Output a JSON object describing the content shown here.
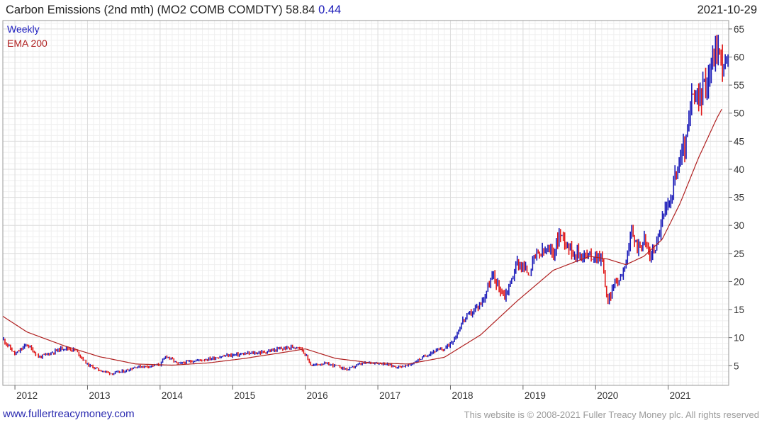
{
  "header": {
    "title": "Carbon Emissions (2nd mth) (MO2 COMB COMDTY)",
    "last": "58.84",
    "change": "0.44",
    "date": "2021-10-29"
  },
  "legend": {
    "period": "Weekly",
    "ma": "EMA 200"
  },
  "footer": {
    "website": "www.fullertreacymoney.com",
    "copyright": "This website is © 2008-2021 Fuller Treacy Money plc. All rights reserved"
  },
  "colors": {
    "up": "#1a1ab8",
    "down": "#e01818",
    "ema": "#b02020",
    "grid": "#dddddd"
  },
  "chart_data": {
    "type": "line",
    "style": "ohlc-bars",
    "period": "weekly",
    "x_ticks": [
      "2012",
      "2013",
      "2014",
      "2015",
      "2016",
      "2017",
      "2018",
      "2019",
      "2020",
      "2021"
    ],
    "y_ticks": [
      5,
      10,
      15,
      20,
      25,
      30,
      35,
      40,
      45,
      50,
      55,
      60,
      65
    ],
    "xlim": [
      "2011-11",
      "2021-11"
    ],
    "ylim": [
      1.5,
      66.5
    ],
    "grid": true,
    "y_axis_side": "right",
    "series": [
      {
        "name": "Weekly",
        "points": [
          [
            "2011-11",
            9.8
          ],
          [
            "2012-01",
            7.0
          ],
          [
            "2012-03",
            8.8
          ],
          [
            "2012-05",
            6.5
          ],
          [
            "2012-07",
            7.3
          ],
          [
            "2012-09",
            8.2
          ],
          [
            "2012-11",
            7.8
          ],
          [
            "2013-01",
            5.2
          ],
          [
            "2013-03",
            4.2
          ],
          [
            "2013-05",
            3.6
          ],
          [
            "2013-07",
            4.0
          ],
          [
            "2013-09",
            4.8
          ],
          [
            "2013-11",
            4.9
          ],
          [
            "2014-01",
            5.2
          ],
          [
            "2014-02",
            6.8
          ],
          [
            "2014-04",
            5.3
          ],
          [
            "2014-06",
            5.8
          ],
          [
            "2014-09",
            6.2
          ],
          [
            "2014-12",
            6.8
          ],
          [
            "2015-03",
            7.1
          ],
          [
            "2015-06",
            7.4
          ],
          [
            "2015-09",
            8.0
          ],
          [
            "2015-12",
            8.5
          ],
          [
            "2016-01",
            7.0
          ],
          [
            "2016-02",
            5.0
          ],
          [
            "2016-04",
            5.4
          ],
          [
            "2016-06",
            5.0
          ],
          [
            "2016-08",
            4.3
          ],
          [
            "2016-10",
            5.3
          ],
          [
            "2016-12",
            5.6
          ],
          [
            "2017-02",
            5.4
          ],
          [
            "2017-04",
            4.8
          ],
          [
            "2017-06",
            5.0
          ],
          [
            "2017-08",
            6.2
          ],
          [
            "2017-10",
            7.5
          ],
          [
            "2017-12",
            8.0
          ],
          [
            "2018-01",
            9.0
          ],
          [
            "2018-02",
            10.5
          ],
          [
            "2018-03",
            13.0
          ],
          [
            "2018-05",
            15.0
          ],
          [
            "2018-06",
            16.0
          ],
          [
            "2018-07",
            18.5
          ],
          [
            "2018-08",
            21.0
          ],
          [
            "2018-09",
            19.0
          ],
          [
            "2018-10",
            17.5
          ],
          [
            "2018-11",
            20.0
          ],
          [
            "2018-12",
            23.5
          ],
          [
            "2019-02",
            21.5
          ],
          [
            "2019-03",
            24.5
          ],
          [
            "2019-05",
            25.5
          ],
          [
            "2019-06",
            25.0
          ],
          [
            "2019-07",
            28.5
          ],
          [
            "2019-08",
            27.5
          ],
          [
            "2019-09",
            25.5
          ],
          [
            "2019-10",
            25.0
          ],
          [
            "2019-12",
            24.5
          ],
          [
            "2020-02",
            24.5
          ],
          [
            "2020-03",
            16.0
          ],
          [
            "2020-04",
            19.5
          ],
          [
            "2020-05",
            20.5
          ],
          [
            "2020-06",
            24.0
          ],
          [
            "2020-07",
            28.5
          ],
          [
            "2020-08",
            26.0
          ],
          [
            "2020-09",
            27.5
          ],
          [
            "2020-10",
            24.5
          ],
          [
            "2020-11",
            26.5
          ],
          [
            "2020-12",
            31.0
          ],
          [
            "2021-01",
            33.5
          ],
          [
            "2021-02",
            38.0
          ],
          [
            "2021-03",
            42.0
          ],
          [
            "2021-04",
            45.0
          ],
          [
            "2021-05",
            53.0
          ],
          [
            "2021-06",
            52.0
          ],
          [
            "2021-07",
            55.0
          ],
          [
            "2021-08",
            58.0
          ],
          [
            "2021-09",
            62.0
          ],
          [
            "2021-10",
            58.8
          ]
        ]
      },
      {
        "name": "EMA 200",
        "points": [
          [
            "2011-11",
            13.8
          ],
          [
            "2012-03",
            11.0
          ],
          [
            "2012-09",
            8.6
          ],
          [
            "2013-03",
            6.6
          ],
          [
            "2013-09",
            5.3
          ],
          [
            "2014-03",
            5.1
          ],
          [
            "2014-09",
            5.5
          ],
          [
            "2015-03",
            6.3
          ],
          [
            "2015-09",
            7.3
          ],
          [
            "2016-01",
            8.0
          ],
          [
            "2016-06",
            6.3
          ],
          [
            "2016-12",
            5.5
          ],
          [
            "2017-06",
            5.3
          ],
          [
            "2017-12",
            6.5
          ],
          [
            "2018-06",
            10.5
          ],
          [
            "2018-12",
            16.5
          ],
          [
            "2019-06",
            22.0
          ],
          [
            "2019-12",
            24.5
          ],
          [
            "2020-03",
            24.0
          ],
          [
            "2020-06",
            23.0
          ],
          [
            "2020-09",
            24.5
          ],
          [
            "2020-12",
            27.5
          ],
          [
            "2021-03",
            34.0
          ],
          [
            "2021-06",
            42.0
          ],
          [
            "2021-09",
            49.0
          ],
          [
            "2021-10",
            51.0
          ]
        ]
      }
    ]
  }
}
